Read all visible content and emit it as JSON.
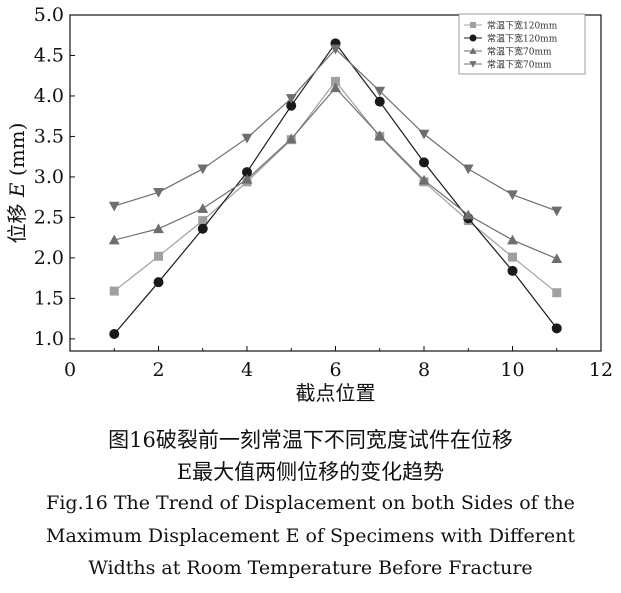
{
  "chart_data": {
    "type": "line",
    "title": "",
    "xlabel": "截点位置",
    "ylabel_prefix": "位移",
    "ylabel_var": "E",
    "ylabel_unit": "(mm)",
    "xlim": [
      0,
      12
    ],
    "ylim": [
      0.8,
      5.0
    ],
    "xticks": [
      0,
      2,
      4,
      6,
      8,
      10,
      12
    ],
    "yticks": [
      1.0,
      1.5,
      2.0,
      2.5,
      3.0,
      3.5,
      4.0,
      4.5,
      5.0
    ],
    "ytick_labels": [
      "1.0",
      "1.5",
      "2.0",
      "2.5",
      "3.0",
      "3.5",
      "4.0",
      "4.5",
      "5.0"
    ],
    "x": [
      1,
      2,
      3,
      4,
      5,
      6,
      7,
      8,
      9,
      10,
      11
    ],
    "series": [
      {
        "name": "常温下宽120mm",
        "marker": "square",
        "color": "#a0a0a0",
        "values": [
          1.59,
          2.02,
          2.46,
          2.94,
          3.46,
          4.18,
          3.5,
          2.94,
          2.46,
          2.01,
          1.57
        ]
      },
      {
        "name": "常温下宽120mm",
        "marker": "circle",
        "color": "#1a1a1a",
        "values": [
          1.06,
          1.7,
          2.36,
          3.06,
          3.88,
          4.65,
          3.93,
          3.18,
          2.49,
          1.84,
          1.13
        ]
      },
      {
        "name": "常温下宽70mm",
        "marker": "triangle-up",
        "color": "#6e6e6e",
        "values": [
          2.22,
          2.36,
          2.61,
          2.97,
          3.47,
          4.1,
          3.51,
          2.96,
          2.53,
          2.22,
          1.99
        ]
      },
      {
        "name": "常温下宽70mm",
        "marker": "triangle-down",
        "color": "#6e6e6e",
        "values": [
          2.64,
          2.81,
          3.1,
          3.48,
          3.97,
          4.58,
          4.06,
          3.53,
          3.1,
          2.78,
          2.58
        ]
      }
    ],
    "legend_position": "top-right",
    "grid": false
  },
  "caption": {
    "cn_line1": "图16破裂前一刻常温下不同宽度试件在位移",
    "cn_line2": "E最大值两侧位移的变化趋势",
    "en_line1": "Fig.16 The Trend of Displacement on both Sides of the",
    "en_line2": "Maximum Displacement E of Specimens with Different",
    "en_line3": "Widths at Room Temperature Before Fracture"
  }
}
